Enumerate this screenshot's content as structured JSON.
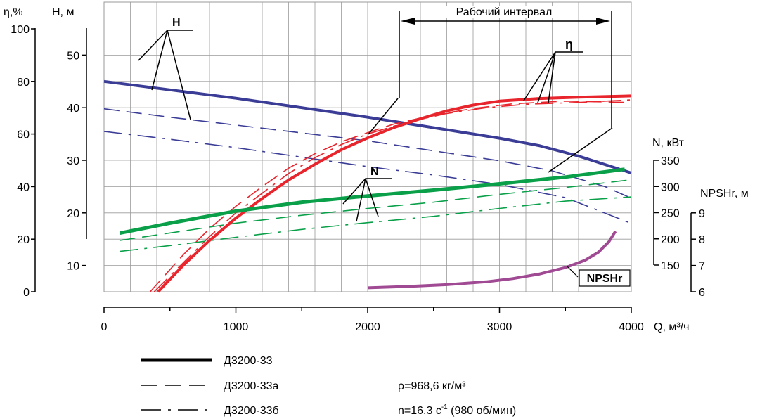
{
  "axes": {
    "eta_label": "η,%",
    "h_label": "Н, м",
    "q_label": "Q, м³/ч",
    "n_label": "N, кВт",
    "npsh_label": "NPSHr, м"
  },
  "labels": {
    "H": "H",
    "eta": "η",
    "N": "N",
    "NPSHr": "NPSHr",
    "working_interval": "Рабочий интервал"
  },
  "legend": [
    {
      "label": "Д3200-33",
      "style": "solid"
    },
    {
      "label": "Д3200-33а",
      "style": "dashed"
    },
    {
      "label": "Д3200-33б",
      "style": "dashdot"
    }
  ],
  "notes": {
    "density": "ρ=968,6 кг/м³",
    "speed_prefix": "n=16,3 с",
    "speed_sup": "-1",
    "speed_suffix": " (980 об/мин)"
  },
  "colors": {
    "H": "#3a3c96",
    "eta": "#e8242c",
    "N": "#0aa04a",
    "NPSHr": "#a04a94",
    "grid": "#9a9a9a"
  },
  "chart_data": {
    "type": "line",
    "x": {
      "label": "Q, м³/ч",
      "range": [
        0,
        4000
      ],
      "ticks": [
        0,
        1000,
        2000,
        3000,
        4000
      ]
    },
    "y_axes": {
      "eta": {
        "label": "η,%",
        "range": [
          0,
          100
        ],
        "ticks": [
          0,
          20,
          40,
          60,
          80,
          100
        ]
      },
      "H": {
        "label": "Н, м",
        "range": [
          5,
          50
        ],
        "ticks": [
          10,
          20,
          30,
          40,
          50
        ]
      },
      "N": {
        "label": "N, кВт",
        "range": [
          150,
          350
        ],
        "ticks": [
          150,
          200,
          250,
          300,
          350
        ]
      },
      "NPSHr": {
        "label": "NPSHr, м",
        "range": [
          6,
          9
        ],
        "ticks": [
          6,
          7,
          8,
          9
        ]
      }
    },
    "working_interval": [
      2250,
      3850
    ],
    "grid": true,
    "series": [
      {
        "name": "Д3200-33",
        "quantity": "H",
        "style": "solid",
        "points": [
          [
            0,
            45
          ],
          [
            500,
            43.4
          ],
          [
            1000,
            41.8
          ],
          [
            1500,
            40
          ],
          [
            2000,
            38.2
          ],
          [
            2500,
            36.2
          ],
          [
            3000,
            34.2
          ],
          [
            3300,
            32.8
          ],
          [
            3600,
            30.8
          ],
          [
            4000,
            27.6
          ]
        ]
      },
      {
        "name": "Д3200-33а",
        "quantity": "H",
        "style": "dashed",
        "points": [
          [
            0,
            39.8
          ],
          [
            500,
            38.2
          ],
          [
            1000,
            36.7
          ],
          [
            1500,
            35.2
          ],
          [
            2000,
            33.7
          ],
          [
            2500,
            31.8
          ],
          [
            3000,
            29.9
          ],
          [
            3400,
            28
          ],
          [
            3800,
            25
          ],
          [
            4000,
            22.8
          ]
        ]
      },
      {
        "name": "Д3200-33б",
        "quantity": "H",
        "style": "dashdot",
        "points": [
          [
            0,
            35.5
          ],
          [
            500,
            34
          ],
          [
            1000,
            32.4
          ],
          [
            1500,
            30.6
          ],
          [
            2000,
            28.8
          ],
          [
            2500,
            27.2
          ],
          [
            3000,
            25.4
          ],
          [
            3500,
            22.9
          ],
          [
            4000,
            18
          ]
        ]
      },
      {
        "name": "Д3200-33",
        "quantity": "η",
        "style": "solid",
        "points": [
          [
            410,
            0
          ],
          [
            600,
            10
          ],
          [
            800,
            19.5
          ],
          [
            1000,
            28
          ],
          [
            1200,
            35.5
          ],
          [
            1400,
            42.5
          ],
          [
            1600,
            48.5
          ],
          [
            1800,
            54
          ],
          [
            2000,
            58.5
          ],
          [
            2200,
            62.5
          ],
          [
            2400,
            65.8
          ],
          [
            2600,
            68.8
          ],
          [
            2800,
            71
          ],
          [
            3000,
            72.5
          ],
          [
            3300,
            73.5
          ],
          [
            3600,
            74
          ],
          [
            4000,
            74.5
          ]
        ]
      },
      {
        "name": "Д3200-33а",
        "quantity": "η",
        "style": "dashed",
        "points": [
          [
            350,
            0
          ],
          [
            600,
            14
          ],
          [
            800,
            24
          ],
          [
            1000,
            32.5
          ],
          [
            1200,
            40
          ],
          [
            1400,
            47
          ],
          [
            1600,
            52.5
          ],
          [
            1800,
            57
          ],
          [
            2000,
            60.5
          ],
          [
            2200,
            63.8
          ],
          [
            2500,
            67.2
          ],
          [
            2800,
            69.7
          ],
          [
            3100,
            71.5
          ],
          [
            3500,
            72.5
          ],
          [
            4000,
            72
          ]
        ]
      },
      {
        "name": "Д3200-33б",
        "quantity": "η",
        "style": "dashdot",
        "points": [
          [
            380,
            0
          ],
          [
            600,
            11
          ],
          [
            800,
            21
          ],
          [
            1000,
            30
          ],
          [
            1200,
            37.5
          ],
          [
            1400,
            45
          ],
          [
            1600,
            51
          ],
          [
            1800,
            56
          ],
          [
            2000,
            60
          ],
          [
            2300,
            64.5
          ],
          [
            2600,
            67.8
          ],
          [
            2900,
            70
          ],
          [
            3200,
            71.3
          ],
          [
            3600,
            72
          ],
          [
            4000,
            73
          ]
        ]
      },
      {
        "name": "Д3200-33",
        "quantity": "N",
        "style": "solid",
        "points": [
          [
            120,
            211
          ],
          [
            500,
            230
          ],
          [
            1000,
            253
          ],
          [
            1500,
            270
          ],
          [
            2000,
            282
          ],
          [
            2500,
            293
          ],
          [
            3000,
            305
          ],
          [
            3500,
            318
          ],
          [
            3950,
            333
          ]
        ]
      },
      {
        "name": "Д3200-33а",
        "quantity": "N",
        "style": "dashed",
        "points": [
          [
            120,
            197
          ],
          [
            600,
            215
          ],
          [
            1000,
            230
          ],
          [
            1500,
            245
          ],
          [
            2000,
            258
          ],
          [
            2500,
            270
          ],
          [
            3000,
            285
          ],
          [
            3500,
            298
          ],
          [
            4000,
            313
          ]
        ]
      },
      {
        "name": "Д3200-33б",
        "quantity": "N",
        "style": "dashdot",
        "points": [
          [
            120,
            176
          ],
          [
            600,
            190
          ],
          [
            1000,
            203
          ],
          [
            1500,
            218
          ],
          [
            2000,
            231
          ],
          [
            2500,
            243
          ],
          [
            3000,
            258
          ],
          [
            3500,
            272
          ],
          [
            4000,
            280
          ]
        ]
      },
      {
        "name": "Д3200-33",
        "quantity": "NPSHr",
        "style": "solid",
        "points": [
          [
            2000,
            6.15
          ],
          [
            2300,
            6.2
          ],
          [
            2600,
            6.27
          ],
          [
            2900,
            6.38
          ],
          [
            3100,
            6.5
          ],
          [
            3300,
            6.67
          ],
          [
            3500,
            6.92
          ],
          [
            3650,
            7.2
          ],
          [
            3750,
            7.5
          ],
          [
            3830,
            7.9
          ],
          [
            3880,
            8.3
          ]
        ]
      }
    ]
  }
}
